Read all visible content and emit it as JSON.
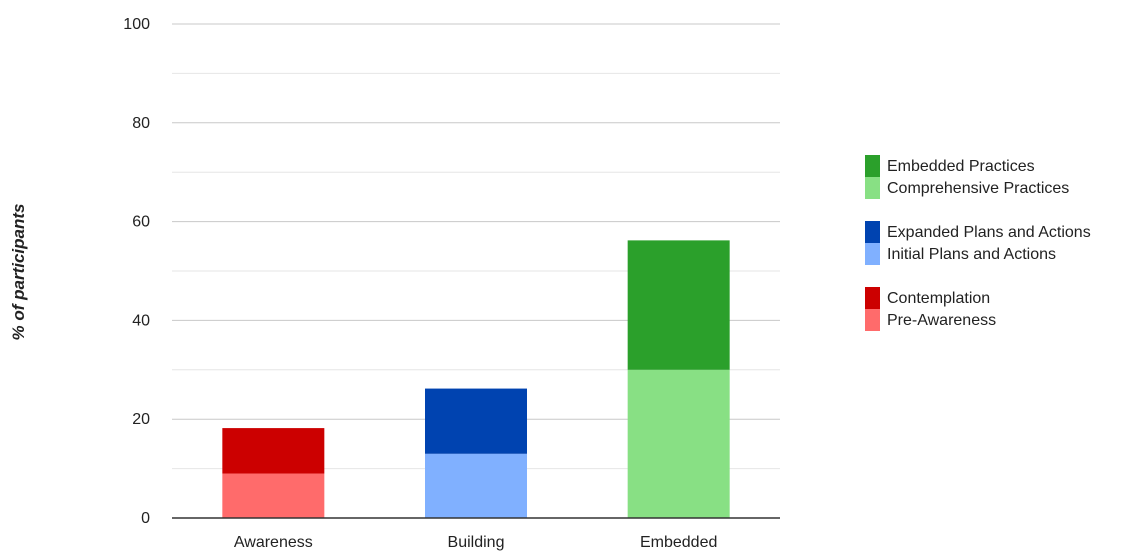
{
  "chart_data": {
    "type": "bar",
    "stacked": true,
    "title": "",
    "xlabel": "",
    "ylabel": "% of participants",
    "ylim": [
      0,
      100
    ],
    "y_ticks": [
      0,
      20,
      40,
      60,
      80,
      100
    ],
    "grid": true,
    "legend_position": "right",
    "categories": [
      "Awareness",
      "Building",
      "Embedded"
    ],
    "stacks": [
      {
        "category": "Awareness",
        "segments": [
          {
            "name": "Pre-Awareness",
            "value": 9,
            "color": "#ff6b6b"
          },
          {
            "name": "Contemplation",
            "value": 9.2,
            "color": "#cc0000"
          }
        ]
      },
      {
        "category": "Building",
        "segments": [
          {
            "name": "Initial Plans and Actions",
            "value": 13,
            "color": "#80b0ff"
          },
          {
            "name": "Expanded Plans and Actions",
            "value": 13.2,
            "color": "#0043b0"
          }
        ]
      },
      {
        "category": "Embedded",
        "segments": [
          {
            "name": "Comprehensive Practices",
            "value": 30,
            "color": "#88e084"
          },
          {
            "name": "Embedded Practices",
            "value": 26.2,
            "color": "#2ba02b"
          }
        ]
      }
    ],
    "legend_groups": [
      [
        {
          "name": "Embedded Practices",
          "color": "#2ba02b"
        },
        {
          "name": "Comprehensive Practices",
          "color": "#88e084"
        }
      ],
      [
        {
          "name": "Expanded Plans and Actions",
          "color": "#0043b0"
        },
        {
          "name": "Initial Plans and Actions",
          "color": "#80b0ff"
        }
      ],
      [
        {
          "name": "Contemplation",
          "color": "#cc0000"
        },
        {
          "name": "Pre-Awareness",
          "color": "#ff6b6b"
        }
      ]
    ]
  }
}
